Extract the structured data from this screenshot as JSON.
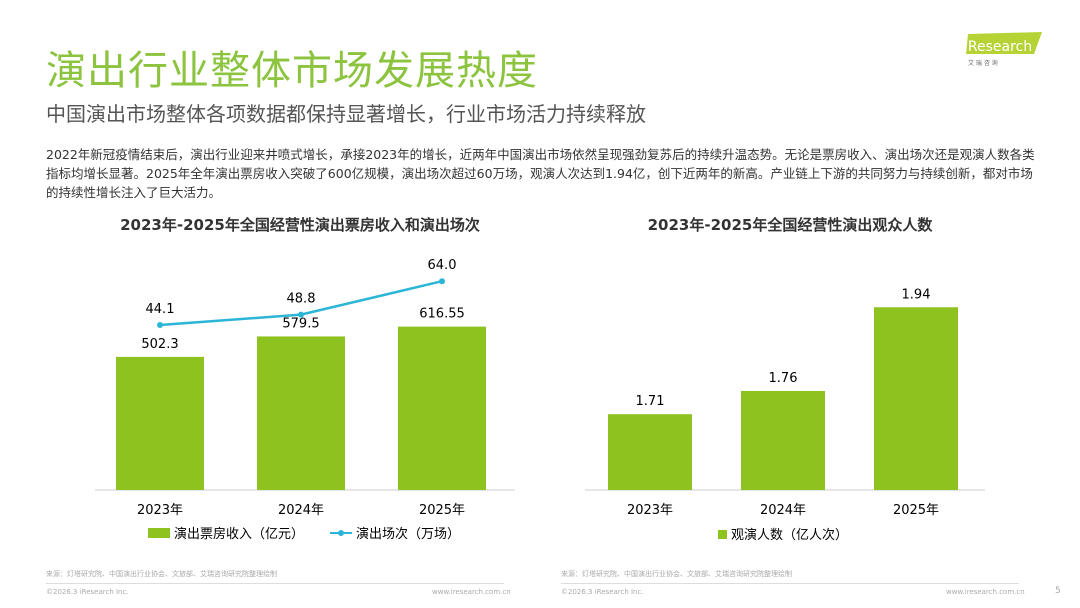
{
  "header": {
    "title": "演出行业整体市场发展热度",
    "subtitle": "中国演出市场整体各项数据都保持显著增长，行业市场活力持续释放",
    "logo_text": "iResearch",
    "logo_sub": "艾 瑞 咨 询"
  },
  "body_text": "2022年新冠疫情结束后，演出行业迎来井喷式增长，承接2023年的增长，近两年中国演出市场依然呈现强劲复苏后的持续升温态势。无论是票房收入、演出场次还是观演人数各类指标均增长显著。2025年全年演出票房收入突破了600亿规模，演出场次超过60万场，观演人次达到1.94亿，创下近两年的新高。产业链上下游的共同努力与持续创新，都对市场的持续性增长注入了巨大活力。",
  "colors": {
    "bar": "#8dc21f",
    "line": "#2bb5d6",
    "title": "#8cc43f"
  },
  "chart_data": [
    {
      "type": "bar+line",
      "title": "2023年-2025年全国经营性演出票房收入和演出场次",
      "categories": [
        "2023年",
        "2024年",
        "2025年"
      ],
      "series": [
        {
          "name": "演出票房收入（亿元）",
          "type": "bar",
          "values": [
            502.3,
            579.5,
            616.55
          ],
          "labels": [
            "502.3",
            "579.5",
            "616.55"
          ]
        },
        {
          "name": "演出场次（万场）",
          "type": "line",
          "values": [
            44.1,
            48.8,
            64.0
          ],
          "labels": [
            "44.1",
            "48.8",
            "64.0"
          ]
        }
      ],
      "legend": "bottom",
      "grid": false
    },
    {
      "type": "bar",
      "title": "2023年-2025年全国经营性演出观众人数",
      "categories": [
        "2023年",
        "2024年",
        "2025年"
      ],
      "series": [
        {
          "name": "观演人数（亿人次）",
          "values": [
            1.71,
            1.76,
            1.94
          ],
          "labels": [
            "1.71",
            "1.76",
            "1.94"
          ]
        }
      ],
      "legend": "bottom",
      "grid": false
    }
  ],
  "footer": {
    "source": "来源：灯塔研究院、中国演出行业协会、文旅部、艾瑞咨询研究院整理绘制",
    "copyright": "©2026.3 iResearch Inc.",
    "url": "www.iresearch.com.cn",
    "page": "5"
  }
}
